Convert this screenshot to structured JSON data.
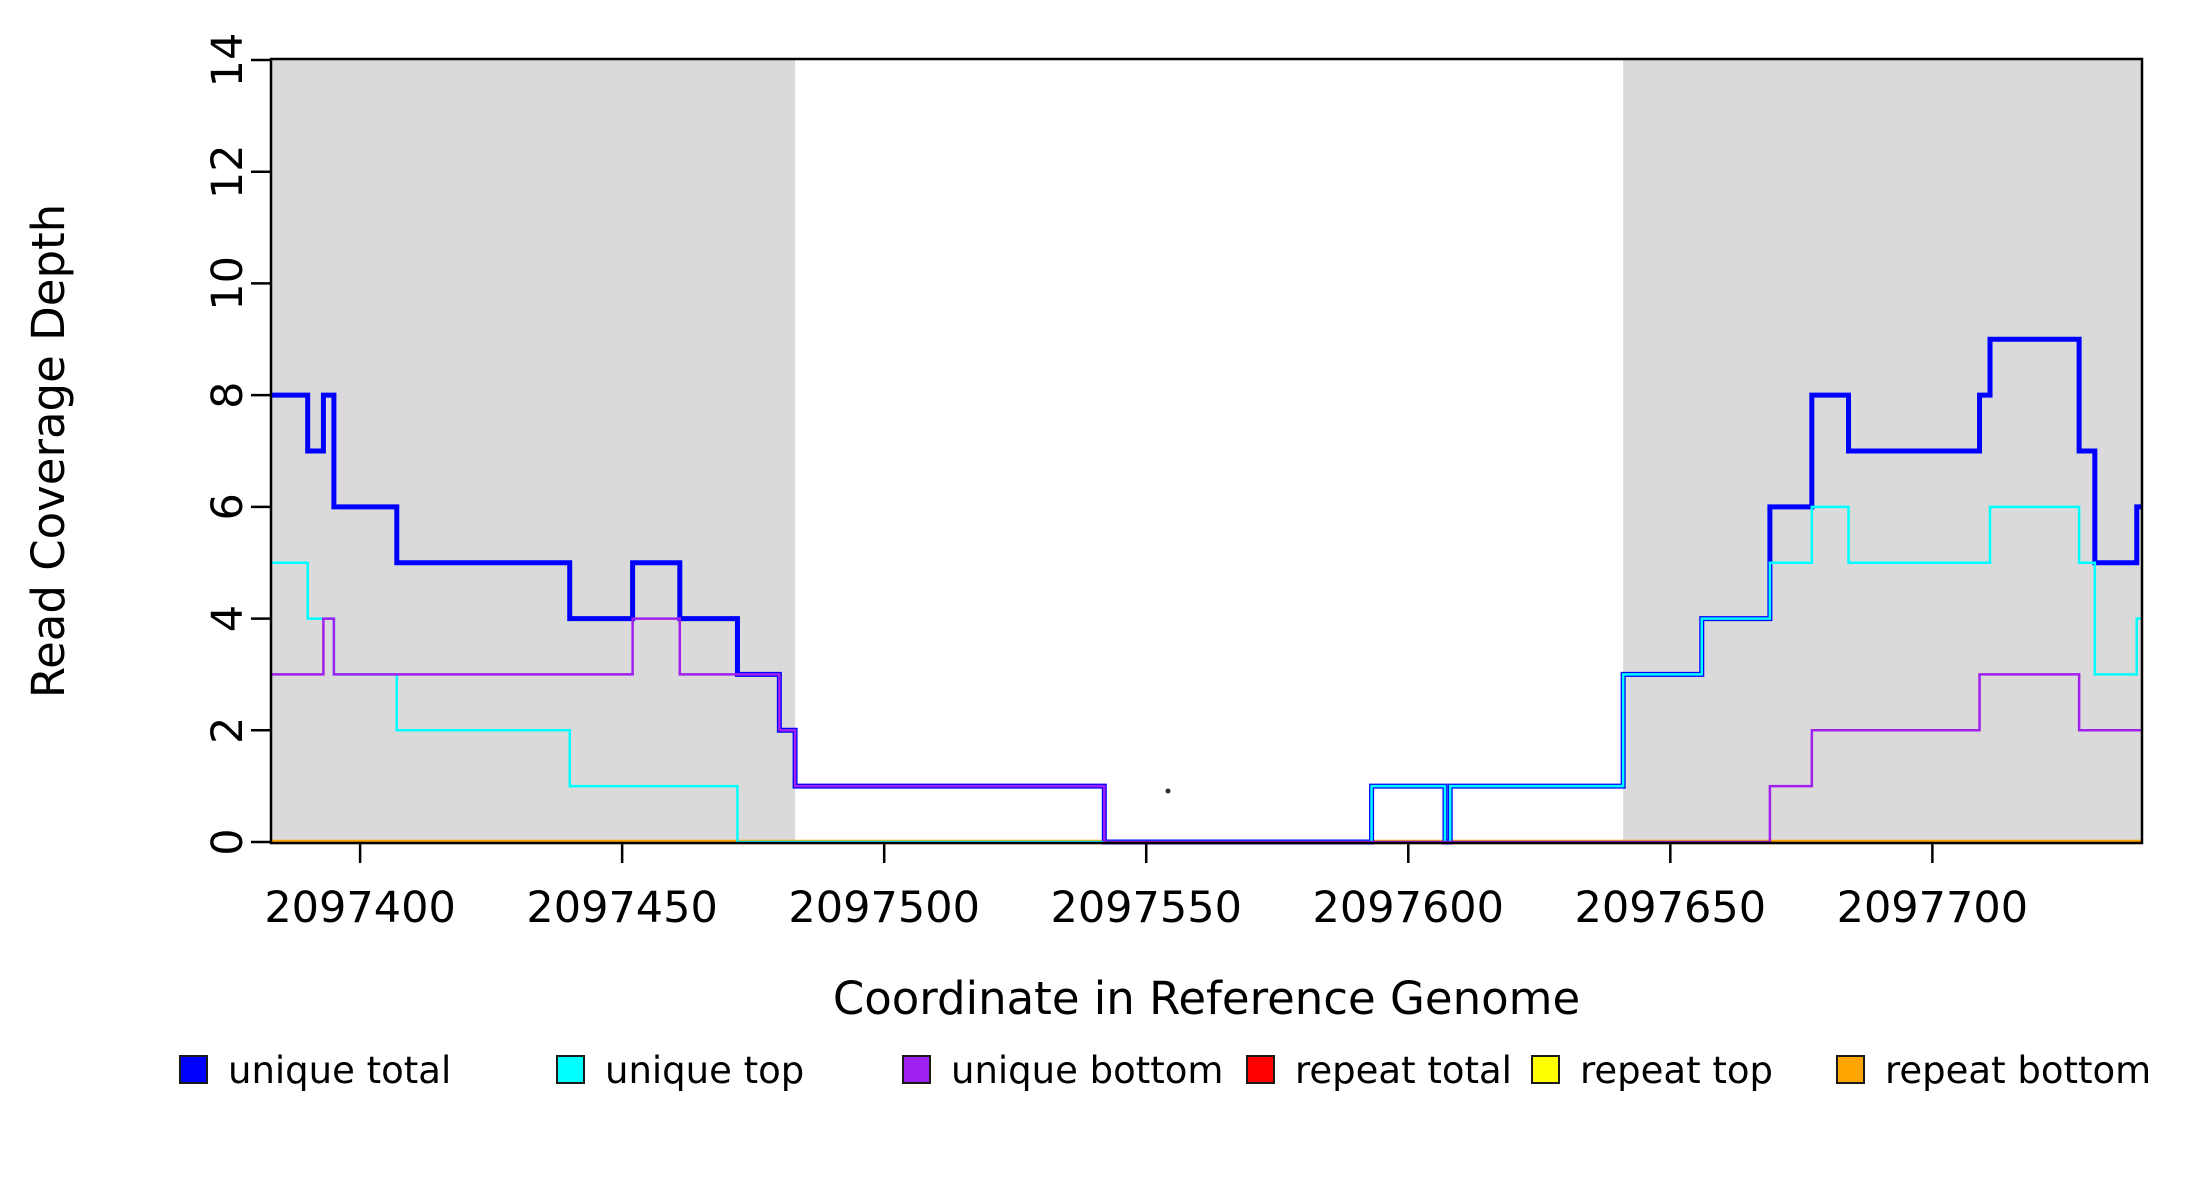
{
  "chart_data": {
    "type": "line",
    "subtype": "step-coverage",
    "title": "",
    "xlabel": "Coordinate in Reference Genome",
    "ylabel": "Read Coverage Depth",
    "xlim": [
      2097383,
      2097740
    ],
    "ylim": [
      0,
      14
    ],
    "x_ticks": [
      2097400,
      2097450,
      2097500,
      2097550,
      2097600,
      2097650,
      2097700
    ],
    "y_ticks": [
      0,
      2,
      4,
      6,
      8,
      10,
      12,
      14
    ],
    "grid": false,
    "legend_position": "bottom",
    "shaded_region_color": "#dadada",
    "shaded_regions": [
      {
        "from": 2097383,
        "to": 2097483
      },
      {
        "from": 2097641,
        "to": 2097740
      }
    ],
    "series": [
      {
        "name": "repeat total",
        "color": "#FF0000",
        "width": 3,
        "steps": [
          [
            2097383,
            0
          ]
        ]
      },
      {
        "name": "repeat top",
        "color": "#FFFF00",
        "width": 3,
        "steps": [
          [
            2097383,
            0
          ]
        ]
      },
      {
        "name": "repeat bottom",
        "color": "#FFA500",
        "width": 4.5,
        "steps": [
          [
            2097383,
            0
          ]
        ]
      },
      {
        "name": "unique total",
        "color": "#0000FF",
        "width": 5,
        "steps": [
          [
            2097383,
            8
          ],
          [
            2097390,
            7
          ],
          [
            2097393,
            8
          ],
          [
            2097395,
            6
          ],
          [
            2097407,
            5
          ],
          [
            2097440,
            4
          ],
          [
            2097452,
            5
          ],
          [
            2097461,
            4
          ],
          [
            2097472,
            3
          ],
          [
            2097480,
            2
          ],
          [
            2097483,
            1
          ],
          [
            2097542,
            0
          ],
          [
            2097593,
            1
          ],
          [
            2097607,
            0
          ],
          [
            2097608,
            1
          ],
          [
            2097641,
            3
          ],
          [
            2097656,
            4
          ],
          [
            2097669,
            6
          ],
          [
            2097677,
            8
          ],
          [
            2097684,
            7
          ],
          [
            2097709,
            8
          ],
          [
            2097711,
            9
          ],
          [
            2097728,
            7
          ],
          [
            2097731,
            5
          ],
          [
            2097739,
            6
          ]
        ]
      },
      {
        "name": "unique top",
        "color": "#00FFFF",
        "width": 2.5,
        "steps": [
          [
            2097383,
            5
          ],
          [
            2097390,
            4
          ],
          [
            2097395,
            3
          ],
          [
            2097407,
            2
          ],
          [
            2097440,
            1
          ],
          [
            2097472,
            0
          ],
          [
            2097593,
            1
          ],
          [
            2097607,
            0
          ],
          [
            2097608,
            1
          ],
          [
            2097641,
            3
          ],
          [
            2097656,
            4
          ],
          [
            2097669,
            5
          ],
          [
            2097677,
            6
          ],
          [
            2097684,
            5
          ],
          [
            2097711,
            6
          ],
          [
            2097728,
            5
          ],
          [
            2097731,
            3
          ],
          [
            2097739,
            4
          ]
        ]
      },
      {
        "name": "unique bottom",
        "color": "#A020F0",
        "width": 2.5,
        "steps": [
          [
            2097383,
            3
          ],
          [
            2097393,
            4
          ],
          [
            2097395,
            3
          ],
          [
            2097452,
            4
          ],
          [
            2097461,
            3
          ],
          [
            2097480,
            2
          ],
          [
            2097483,
            1
          ],
          [
            2097542,
            0
          ],
          [
            2097669,
            1
          ],
          [
            2097677,
            2
          ],
          [
            2097709,
            3
          ],
          [
            2097728,
            2
          ]
        ]
      }
    ],
    "legend": [
      {
        "label": "unique total",
        "color": "#0000FF"
      },
      {
        "label": "unique top",
        "color": "#00FFFF"
      },
      {
        "label": "unique bottom",
        "color": "#A020F0"
      },
      {
        "label": "repeat total",
        "color": "#FF0000"
      },
      {
        "label": "repeat top",
        "color": "#FFFF00"
      },
      {
        "label": "repeat bottom",
        "color": "#FFA500"
      }
    ]
  },
  "layout_text": {
    "x_tick_labels": [
      "2097400",
      "2097450",
      "2097500",
      "2097550",
      "2097600",
      "2097650",
      "2097700"
    ],
    "y_tick_labels": [
      "0",
      "2",
      "4",
      "6",
      "8",
      "10",
      "12",
      "14"
    ]
  }
}
